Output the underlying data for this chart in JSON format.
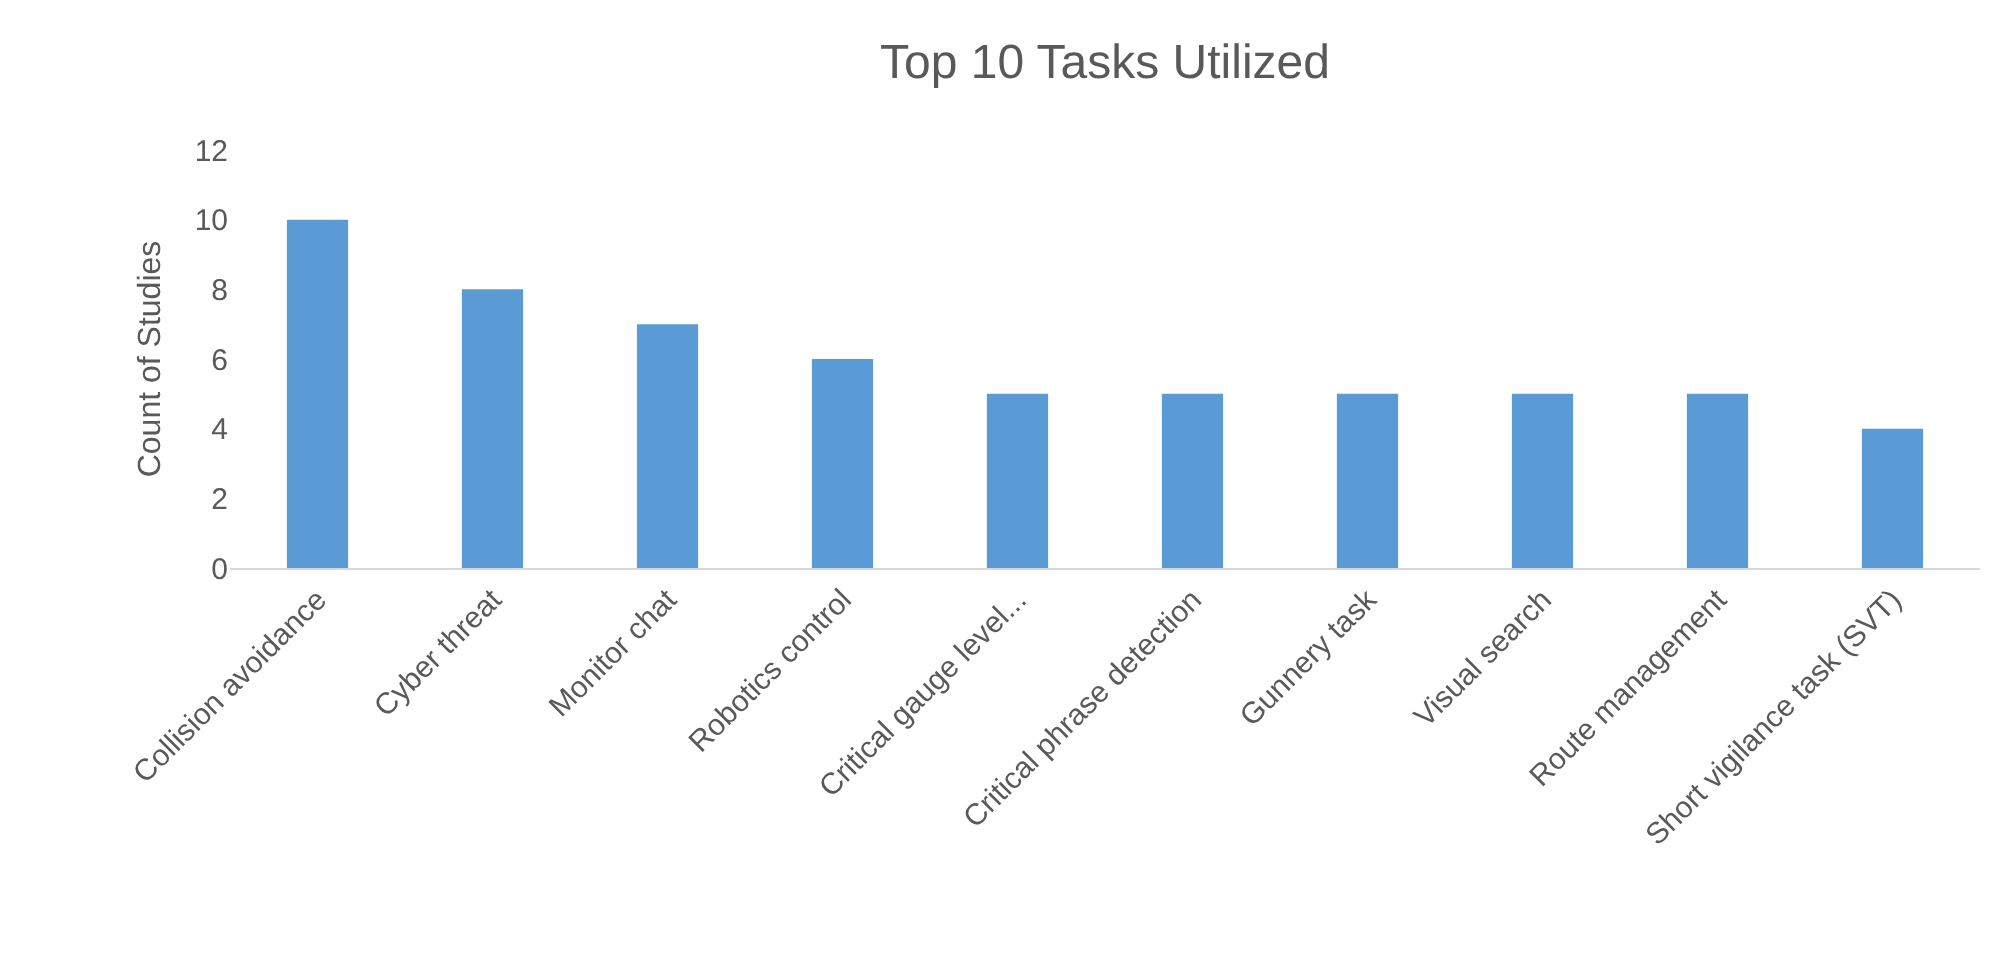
{
  "chart_data": {
    "type": "bar",
    "title": "Top 10 Tasks Utilized",
    "ylabel": "Count of Studies",
    "categories": [
      "Collision avoidance",
      "Cyber threat",
      "Monitor chat",
      "Robotics control",
      "Critical gauge level...",
      "Critical phrase detection",
      "Gunnery task",
      "Visual search",
      "Route management",
      "Short vigilance task (SVT)"
    ],
    "values": [
      10,
      8,
      7,
      6,
      5,
      5,
      5,
      5,
      5,
      4
    ],
    "color": "#5b9bd5",
    "ylim": [
      0,
      12
    ],
    "yticks": [
      0,
      2,
      4,
      6,
      8,
      10,
      12
    ]
  }
}
